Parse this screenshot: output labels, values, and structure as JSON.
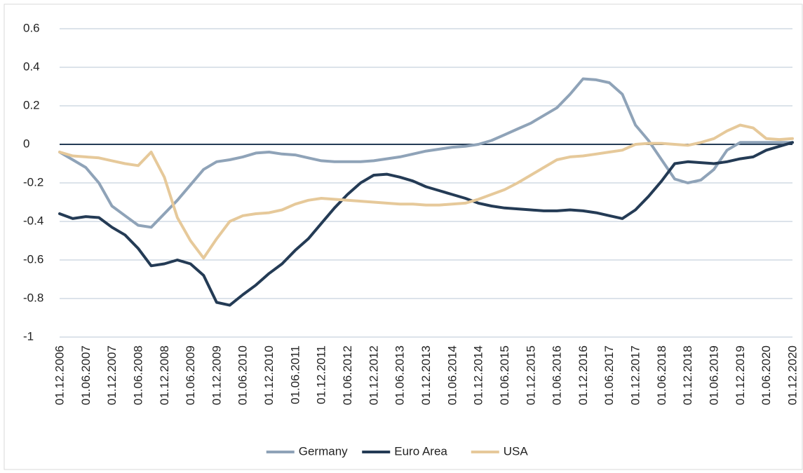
{
  "chart_data": {
    "type": "line",
    "categories": [
      "01.12.2006",
      null,
      "01.06.2007",
      null,
      "01.12.2007",
      null,
      "01.06.2008",
      null,
      "01.12.2008",
      null,
      "01.06.2009",
      null,
      "01.12.2009",
      null,
      "01.06.2010",
      null,
      "01.12.2010",
      null,
      "01.06.2011",
      null,
      "01.12.2011",
      null,
      "01.06.2012",
      null,
      "01.12.2012",
      null,
      "01.06.2013",
      null,
      "01.12.2013",
      null,
      "01.06.2014",
      null,
      "01.12.2014",
      null,
      "01.06.2015",
      null,
      "01.12.2015",
      null,
      "01.06.2016",
      null,
      "01.12.2016",
      null,
      "01.06.2017",
      null,
      "01.12.2017",
      null,
      "01.06.2018",
      null,
      "01.12.2018",
      null,
      "01.06.2019",
      null,
      "01.12.2019",
      null,
      "01.06.2020",
      null,
      "01.12.2020"
    ],
    "series": [
      {
        "name": "Germany",
        "color": "#8fa3b8",
        "values": [
          -0.04,
          -0.08,
          -0.12,
          -0.2,
          -0.32,
          -0.37,
          -0.42,
          -0.43,
          -0.36,
          -0.29,
          -0.21,
          -0.13,
          -0.09,
          -0.08,
          -0.065,
          -0.045,
          -0.04,
          -0.05,
          -0.055,
          -0.07,
          -0.085,
          -0.09,
          -0.09,
          -0.09,
          -0.085,
          -0.075,
          -0.065,
          -0.05,
          -0.035,
          -0.025,
          -0.015,
          -0.01,
          0,
          0.02,
          0.05,
          0.08,
          0.11,
          0.15,
          0.19,
          0.26,
          0.34,
          0.335,
          0.32,
          0.26,
          0.1,
          0.02,
          -0.08,
          -0.18,
          -0.2,
          -0.185,
          -0.13,
          -0.03,
          0.01,
          0.01,
          0.01,
          0.01,
          0.01
        ]
      },
      {
        "name": "Euro Area",
        "color": "#243b55",
        "values": [
          -0.36,
          -0.385,
          -0.375,
          -0.38,
          -0.43,
          -0.47,
          -0.54,
          -0.63,
          -0.62,
          -0.6,
          -0.62,
          -0.68,
          -0.82,
          -0.835,
          -0.78,
          -0.73,
          -0.67,
          -0.62,
          -0.55,
          -0.49,
          -0.41,
          -0.33,
          -0.26,
          -0.2,
          -0.16,
          -0.155,
          -0.17,
          -0.19,
          -0.22,
          -0.24,
          -0.26,
          -0.28,
          -0.305,
          -0.32,
          -0.33,
          -0.335,
          -0.34,
          -0.345,
          -0.345,
          -0.34,
          -0.345,
          -0.355,
          -0.37,
          -0.385,
          -0.34,
          -0.27,
          -0.19,
          -0.1,
          -0.09,
          -0.095,
          -0.1,
          -0.09,
          -0.075,
          -0.065,
          -0.03,
          -0.01,
          0.01
        ]
      },
      {
        "name": "USA",
        "color": "#e6c99a",
        "values": [
          -0.04,
          -0.06,
          -0.065,
          -0.07,
          -0.085,
          -0.1,
          -0.11,
          -0.04,
          -0.17,
          -0.38,
          -0.5,
          -0.59,
          -0.49,
          -0.4,
          -0.37,
          -0.36,
          -0.355,
          -0.34,
          -0.31,
          -0.29,
          -0.28,
          -0.285,
          -0.29,
          -0.295,
          -0.3,
          -0.305,
          -0.31,
          -0.31,
          -0.315,
          -0.315,
          -0.31,
          -0.305,
          -0.285,
          -0.26,
          -0.235,
          -0.2,
          -0.16,
          -0.12,
          -0.08,
          -0.065,
          -0.06,
          -0.05,
          -0.04,
          -0.03,
          0,
          0.005,
          0.005,
          0,
          -0.005,
          0.01,
          0.03,
          0.07,
          0.1,
          0.085,
          0.03,
          0.025,
          0.03
        ]
      }
    ],
    "ylim": [
      -1,
      0.6
    ],
    "yticks": [
      -1,
      -0.8,
      -0.6,
      -0.4,
      -0.2,
      0,
      0.2,
      0.4,
      0.6
    ],
    "grid": true,
    "legend": "bottom"
  }
}
